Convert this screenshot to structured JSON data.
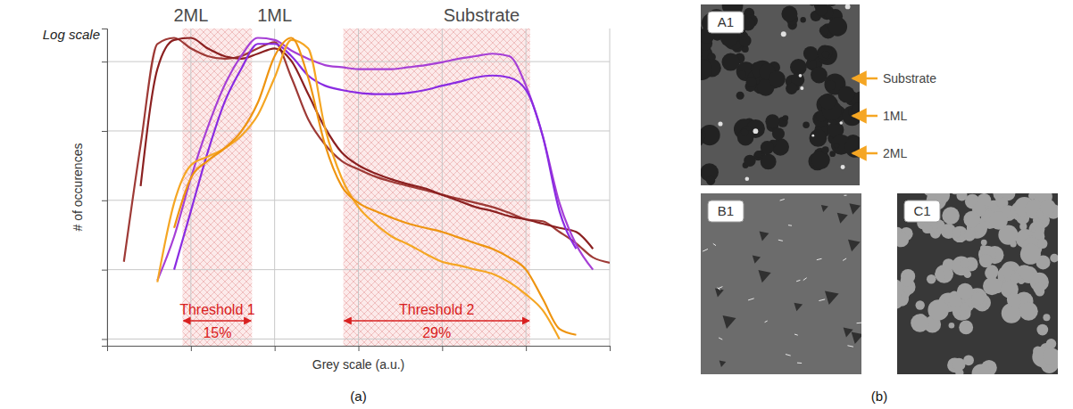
{
  "chart_data": {
    "type": "line",
    "caption": "(a)",
    "x_label": "Grey scale (a.u.)",
    "y_label": "# of occurences",
    "scale_note": "Log scale",
    "log": "y",
    "grid": true,
    "tick_labels": false,
    "xlim": [
      0,
      6
    ],
    "xticks": [
      0,
      1,
      2,
      3,
      4,
      5,
      6
    ],
    "ylim": [
      0.8,
      30000
    ],
    "yticks": [
      1,
      10,
      100,
      1000,
      10000
    ],
    "annotations": [
      {
        "text": "2ML",
        "x": 1.0
      },
      {
        "text": "1ML",
        "x": 2.0
      },
      {
        "text": "Substrate",
        "x": 4.47
      }
    ],
    "thresholds": [
      {
        "label": "Threshold 1",
        "range": [
          0.9,
          1.73
        ],
        "percent": {
          "value": 15,
          "label": "15%"
        }
      },
      {
        "label": "Threshold 2",
        "range": [
          2.82,
          5.05
        ],
        "percent": {
          "value": 29,
          "label": "29%"
        }
      }
    ],
    "x": [
      0,
      0.2,
      0.4,
      0.6,
      0.8,
      1.0,
      1.2,
      1.4,
      1.6,
      1.8,
      2.0,
      2.2,
      2.4,
      2.6,
      2.8,
      3.0,
      3.2,
      3.4,
      3.6,
      3.8,
      4.0,
      4.2,
      4.4,
      4.6,
      4.8,
      5.0,
      5.2,
      5.4,
      5.6,
      5.8,
      6.0
    ],
    "series": [
      {
        "color": "#9e3a36",
        "values": [
          null,
          13,
          630,
          18000,
          22000,
          15500,
          12000,
          11000,
          12000,
          15500,
          19000,
          5900,
          1480,
          640,
          370,
          280,
          220,
          185,
          160,
          140,
          120,
          105,
          92,
          80,
          66,
          53,
          50,
          35,
          24,
          15,
          12.6
        ]
      },
      {
        "color": "#8b2020",
        "values": [
          null,
          null,
          160,
          7800,
          20500,
          22000,
          15500,
          12000,
          11000,
          13000,
          15500,
          10200,
          3400,
          1120,
          490,
          320,
          245,
          200,
          170,
          148,
          120,
          98,
          80,
          70,
          59,
          53,
          46,
          40,
          35,
          20,
          null
        ]
      },
      {
        "color": "#a63fd6",
        "values": [
          null,
          null,
          null,
          7,
          30,
          210,
          1120,
          4500,
          12000,
          22000,
          20500,
          14400,
          11000,
          8900,
          8300,
          7800,
          7800,
          7800,
          8300,
          8900,
          9800,
          11000,
          12000,
          13000,
          12000,
          4500,
          850,
          92,
          23,
          10,
          null
        ]
      },
      {
        "color": "#8a2be2",
        "values": [
          null,
          null,
          null,
          null,
          10,
          70,
          490,
          2570,
          7800,
          18000,
          18000,
          12000,
          6300,
          4500,
          3900,
          3550,
          3400,
          3400,
          3550,
          3900,
          4500,
          5100,
          5900,
          6300,
          5900,
          3900,
          850,
          70,
          20,
          null,
          null
        ]
      },
      {
        "color": "#f5a623",
        "values": [
          null,
          null,
          null,
          6.6,
          92,
          320,
          425,
          560,
          850,
          1700,
          5900,
          20500,
          15500,
          1120,
          210,
          80,
          46,
          30,
          23,
          17,
          13,
          11.5,
          10,
          8.7,
          6.6,
          4.4,
          2.6,
          1.0,
          null,
          null,
          null
        ]
      },
      {
        "color": "#ee9410",
        "values": [
          null,
          null,
          null,
          null,
          40,
          210,
          370,
          560,
          980,
          2570,
          12000,
          22000,
          5900,
          640,
          160,
          92,
          70,
          56,
          46,
          40,
          35,
          29,
          24,
          20,
          15,
          10,
          3.8,
          1.4,
          1.15,
          null,
          null
        ]
      }
    ]
  },
  "image_panel": {
    "caption": "(b)",
    "images": [
      {
        "label": "A1",
        "callouts": [
          "Substrate",
          "1ML",
          "2ML"
        ]
      },
      {
        "label": "B1"
      },
      {
        "label": "C1"
      }
    ]
  }
}
